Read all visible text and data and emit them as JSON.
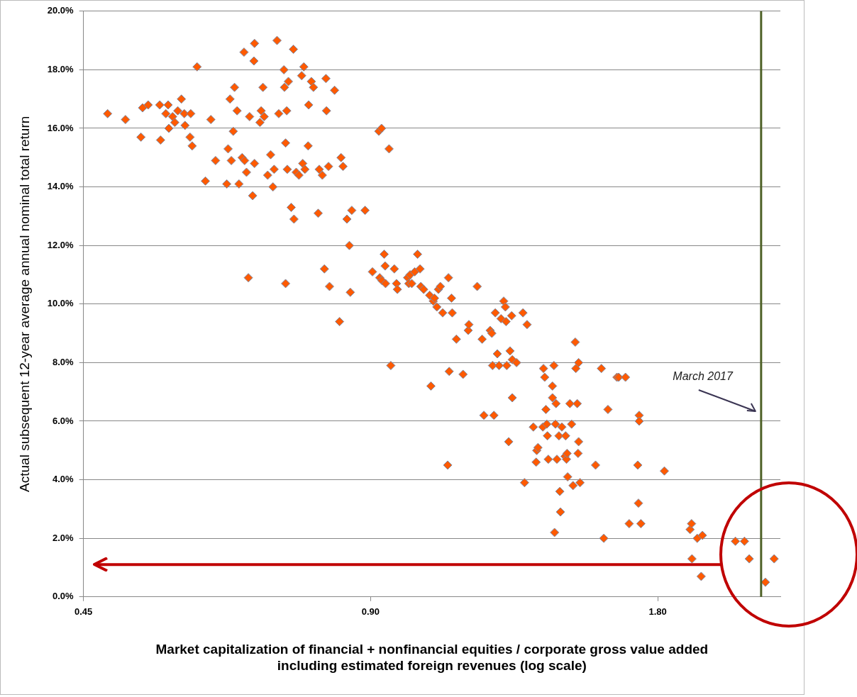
{
  "chart_data": {
    "type": "scatter",
    "xlabel": "Market capitalization of financial + nonfinancial equities / corporate gross value added including estimated foreign revenues (log scale)",
    "ylabel": "Actual subsequent 12-year average annual nominal total return",
    "log": "x",
    "grid": "y",
    "legend": false,
    "marker": "diamond",
    "xlim": [
      0.45,
      2.42
    ],
    "xticks": [
      0.45,
      {
        "value": 0.9,
        "label": "0.90"
      },
      {
        "value": 1.8,
        "label": "1.80"
      }
    ],
    "ylim": [
      0,
      20
    ],
    "yticks": [
      {
        "value": 0,
        "label": "0.0%"
      },
      {
        "value": 2,
        "label": "2.0%"
      },
      {
        "value": 4,
        "label": "4.0%"
      },
      {
        "value": 6,
        "label": "6.0%"
      },
      {
        "value": 8,
        "label": "8.0%"
      },
      {
        "value": 10,
        "label": "10.0%"
      },
      {
        "value": 12,
        "label": "12.0%"
      },
      {
        "value": 14,
        "label": "14.0%"
      },
      {
        "value": 16,
        "label": "16.0%"
      },
      {
        "value": 18,
        "label": "18.0%"
      },
      {
        "value": 20,
        "label": "20.0%"
      }
    ],
    "ref_lines": [
      {
        "axis": "x",
        "value": 2.31,
        "color": "#4f6228",
        "label": "March 2017"
      },
      {
        "axis": "y",
        "value": 1.1,
        "color": "#c00000"
      }
    ],
    "series": [
      {
        "color": "#ff5a00",
        "x": [
          0.477,
          0.498,
          0.517,
          0.519,
          0.526,
          0.541,
          0.542,
          0.549,
          0.552,
          0.558,
          0.553,
          0.561,
          0.565,
          0.57,
          0.574,
          0.575,
          0.582,
          0.583,
          0.585,
          0.592,
          0.604,
          0.612,
          0.619,
          0.636,
          0.638,
          0.641,
          0.643,
          0.646,
          0.648,
          0.652,
          0.655,
          0.66,
          0.663,
          0.664,
          0.667,
          0.67,
          0.672,
          0.677,
          0.679,
          0.68,
          0.68,
          0.689,
          0.691,
          0.694,
          0.696,
          0.702,
          0.707,
          0.711,
          0.713,
          0.718,
          0.721,
          0.73,
          0.731,
          0.733,
          0.733,
          0.735,
          0.736,
          0.738,
          0.743,
          0.747,
          0.748,
          0.752,
          0.757,
          0.762,
          0.764,
          0.766,
          0.768,
          0.774,
          0.775,
          0.78,
          0.784,
          0.793,
          0.795,
          0.801,
          0.805,
          0.808,
          0.809,
          0.813,
          0.815,
          0.825,
          0.835,
          0.838,
          0.842,
          0.85,
          0.855,
          0.857,
          0.86,
          0.888,
          0.904,
          0.918,
          0.92,
          0.924,
          0.925,
          0.93,
          0.932,
          0.933,
          0.941,
          0.945,
          0.953,
          0.958,
          0.96,
          0.984,
          0.987,
          0.99,
          0.994,
          1.001,
          1.008,
          1.014,
          1.016,
          1.023,
          1.038,
          1.041,
          1.047,
          1.05,
          1.056,
          1.06,
          1.065,
          1.071,
          1.084,
          1.086,
          1.088,
          1.094,
          1.096,
          1.107,
          1.125,
          1.139,
          1.141,
          1.164,
          1.178,
          1.183,
          1.201,
          1.206,
          1.208,
          1.212,
          1.216,
          1.222,
          1.227,
          1.233,
          1.241,
          1.246,
          1.248,
          1.25,
          1.256,
          1.26,
          1.265,
          1.267,
          1.267,
          1.28,
          1.3,
          1.305,
          1.313,
          1.333,
          1.342,
          1.344,
          1.348,
          1.364,
          1.366,
          1.37,
          1.374,
          1.377,
          1.379,
          1.382,
          1.396,
          1.396,
          1.401,
          1.403,
          1.406,
          1.408,
          1.411,
          1.418,
          1.421,
          1.423,
          1.428,
          1.439,
          1.441,
          1.444,
          1.446,
          1.448,
          1.456,
          1.462,
          1.467,
          1.475,
          1.477,
          1.482,
          1.485,
          1.487,
          1.487,
          1.492,
          1.549,
          1.571,
          1.58,
          1.596,
          1.631,
          1.638,
          1.665,
          1.68,
          1.715,
          1.718,
          1.721,
          1.721,
          1.728,
          1.829,
          1.946,
          1.953,
          1.955,
          1.98,
          1.999,
          2.005,
          2.171,
          2.219,
          2.245,
          2.334,
          2.384
        ],
        "values": [
          16.5,
          16.3,
          15.7,
          16.7,
          16.8,
          16.8,
          15.6,
          16.5,
          16.8,
          16.4,
          16.0,
          16.2,
          16.6,
          17.0,
          16.5,
          16.1,
          15.7,
          16.5,
          15.4,
          18.1,
          14.2,
          16.3,
          14.9,
          14.1,
          15.3,
          17.0,
          14.9,
          15.9,
          17.4,
          16.6,
          14.1,
          15.0,
          18.6,
          14.9,
          14.5,
          10.9,
          16.4,
          13.7,
          18.3,
          18.9,
          14.8,
          16.2,
          16.6,
          17.4,
          16.4,
          14.4,
          15.1,
          14.0,
          14.6,
          19.0,
          16.5,
          18.0,
          17.4,
          15.5,
          10.7,
          16.6,
          14.6,
          17.6,
          13.3,
          18.7,
          12.9,
          14.5,
          14.4,
          17.8,
          14.8,
          18.1,
          14.6,
          15.4,
          16.8,
          17.6,
          17.4,
          13.1,
          14.6,
          14.4,
          11.2,
          17.7,
          16.6,
          14.7,
          10.6,
          17.3,
          9.4,
          15.0,
          14.7,
          12.9,
          12.0,
          10.4,
          13.2,
          13.2,
          11.1,
          15.9,
          10.9,
          16.0,
          10.8,
          11.7,
          11.3,
          10.7,
          15.3,
          7.9,
          11.2,
          10.7,
          10.5,
          10.9,
          10.7,
          11.0,
          10.7,
          11.1,
          11.7,
          11.2,
          10.6,
          10.5,
          10.3,
          7.2,
          10.1,
          10.2,
          9.9,
          10.5,
          10.6,
          9.7,
          4.5,
          10.9,
          7.7,
          10.2,
          9.7,
          8.8,
          7.6,
          9.1,
          9.3,
          10.6,
          8.8,
          6.2,
          9.1,
          9.0,
          7.9,
          6.2,
          9.7,
          8.3,
          7.9,
          9.5,
          10.1,
          9.9,
          9.4,
          7.9,
          5.3,
          8.4,
          9.6,
          8.1,
          6.8,
          8.0,
          9.7,
          3.9,
          9.3,
          5.8,
          4.6,
          5.0,
          5.1,
          5.8,
          7.8,
          7.5,
          6.4,
          5.9,
          5.5,
          4.7,
          7.2,
          6.8,
          7.9,
          2.2,
          5.9,
          6.6,
          4.7,
          5.5,
          3.6,
          2.9,
          5.8,
          4.8,
          5.5,
          4.7,
          4.9,
          4.1,
          6.6,
          5.9,
          3.8,
          8.7,
          7.8,
          6.6,
          4.9,
          8.0,
          5.3,
          3.9,
          4.5,
          7.8,
          2.0,
          6.4,
          7.5,
          7.5,
          7.5,
          2.5,
          4.5,
          3.2,
          6.2,
          6.0,
          2.5,
          4.3,
          2.3,
          2.5,
          1.3,
          2.0,
          0.7,
          2.1,
          1.9,
          1.9,
          1.3,
          0.5,
          1.3
        ]
      }
    ]
  }
}
